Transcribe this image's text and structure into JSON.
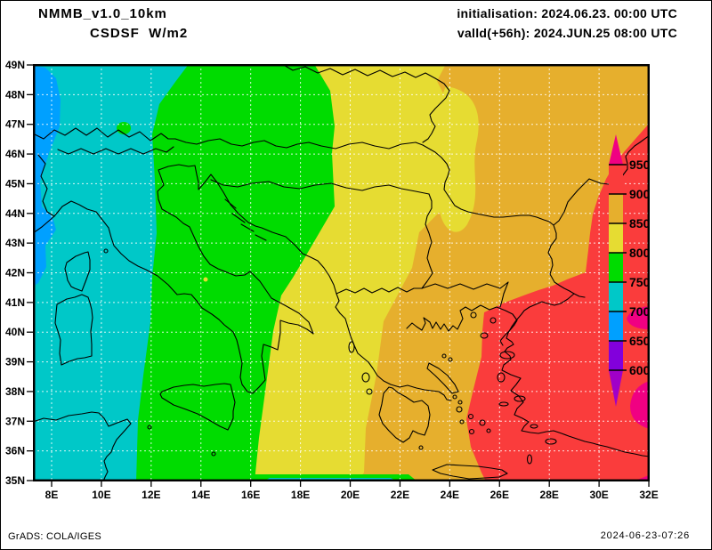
{
  "header": {
    "model_line": "NMMB_v1.0_10km",
    "variable_line": "CSDSF  W/m2",
    "init_line": "initialisation: 2024.06.23. 00:00 UTC",
    "valid_line": "valld(+56h): 2024.JUN.25 08:00 UTC"
  },
  "footer": {
    "left": "GrADS: COLA/IGES",
    "right": "2024-06-23-07:26"
  },
  "chart_data": {
    "type": "heatmap",
    "subtype": "filled_contour_geographic_map",
    "title": "NMMB_v1.0_10km CSDSF W/m2",
    "variable": "CSDSF",
    "unit": "W/m2",
    "x": {
      "ticks": [
        "8E",
        "10E",
        "12E",
        "14E",
        "16E",
        "18E",
        "20E",
        "22E",
        "24E",
        "26E",
        "28E",
        "30E",
        "32E"
      ],
      "range_deg_east": [
        7.2,
        32.1
      ],
      "grid": true
    },
    "y": {
      "ticks": [
        "49N",
        "48N",
        "47N",
        "46N",
        "45N",
        "44N",
        "43N",
        "42N",
        "41N",
        "40N",
        "39N",
        "38N",
        "37N",
        "36N",
        "35N"
      ],
      "range_deg_north": [
        35.0,
        49.0
      ],
      "grid": true
    },
    "colorbar": {
      "unit": "W/m2",
      "labels_top_down": [
        "950",
        "900",
        "850",
        "800",
        "750",
        "700",
        "650",
        "600"
      ],
      "levels_top_down": [
        950,
        900,
        850,
        800,
        750,
        700,
        650,
        600
      ],
      "colors_top_down": [
        "#F00082",
        "#FA3C3C",
        "#E6AF2D",
        "#E6DC32",
        "#00DC00",
        "#00C8C8",
        "#00A0FF",
        "#8200DC",
        "#A000C8"
      ],
      "meaning_top_down": [
        ">950",
        "900-950",
        "850-900",
        "800-850",
        "750-800",
        "700-750",
        "650-700",
        "600-650",
        "<600"
      ],
      "position": "inside map right edge, pointed triangle ends"
    },
    "bands_west_to_east": [
      {
        "value_range": "650-700",
        "color": "#00A0FF",
        "region": "narrow strip along western edge ~7.2-8.5E between 41N and 49N"
      },
      {
        "value_range": "700-750",
        "color": "#00C8C8",
        "region": "band ~8-13.5E: W Alps, W Italy, Corsica, Sardinia, Tunisia coast"
      },
      {
        "value_range": "750-800",
        "color": "#00DC00",
        "region": "band ~13.5-18.5E: E Italy, Sicily, W Balkans"
      },
      {
        "value_range": "800-850",
        "color": "#E6DC32",
        "region": "band ~18.5-23.5E: Hungary, Serbia, W Greece"
      },
      {
        "value_range": "850-900",
        "color": "#E6AF2D",
        "region": "band ~23.5-27E: Romania, Bulgaria, Aegean, with yellow pocket ~23-25E 43-46N"
      },
      {
        "value_range": "900-950",
        "color": "#FA3C3C",
        "region": "east of ~27E: W Turkey, Marmara, Black Sea corner"
      },
      {
        "value_range": ">950",
        "color": "#F00082",
        "region": "spots at extreme eastern edge ~31.5-32E near 38.5N and 36-37N and SE corner"
      }
    ],
    "legend_position": "right-inside",
    "gridlines": "white dashed, every 2 deg lon and 1 deg lat"
  }
}
